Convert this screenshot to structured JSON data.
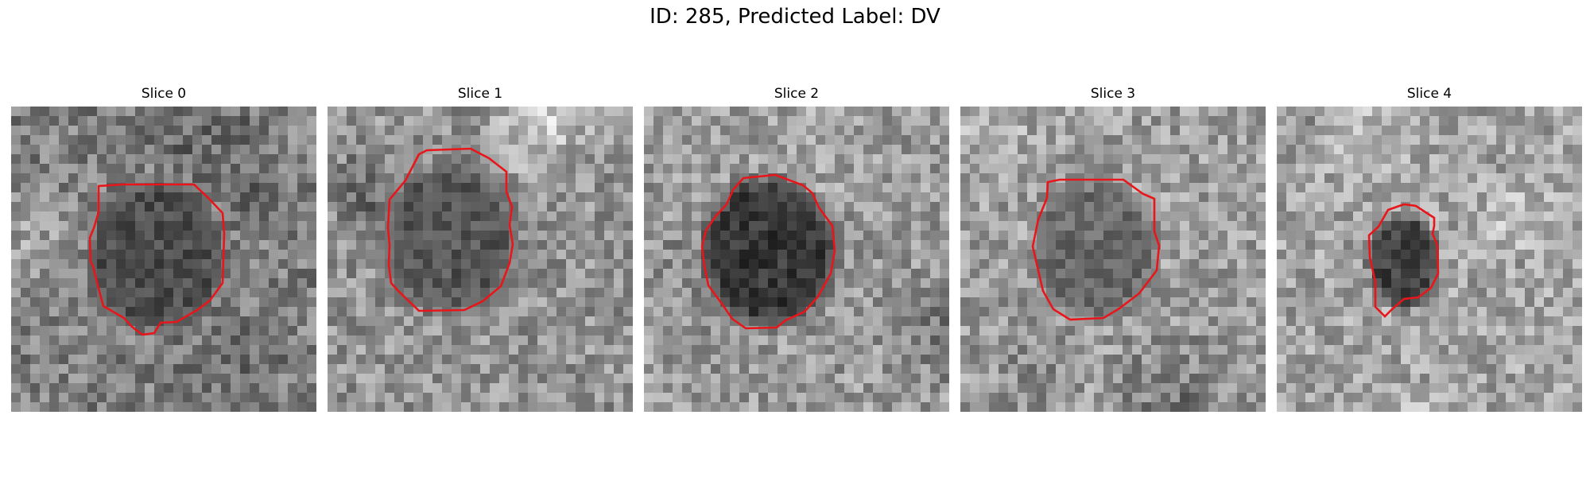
{
  "figure": {
    "title": "ID: 285, Predicted Label: DV",
    "contour_color": "#e8161a",
    "image_colormap": "grayscale"
  },
  "slices": [
    {
      "title": "Slice 0",
      "background_brightness": 0.5,
      "lesion_darkness": 0.3,
      "speckle_seed": 11
    },
    {
      "title": "Slice 1",
      "background_brightness": 0.58,
      "lesion_darkness": 0.34,
      "speckle_seed": 23
    },
    {
      "title": "Slice 2",
      "background_brightness": 0.6,
      "lesion_darkness": 0.22,
      "speckle_seed": 37
    },
    {
      "title": "Slice 3",
      "background_brightness": 0.62,
      "lesion_darkness": 0.42,
      "speckle_seed": 41
    },
    {
      "title": "Slice 4",
      "background_brightness": 0.64,
      "lesion_darkness": 0.26,
      "speckle_seed": 53
    }
  ]
}
